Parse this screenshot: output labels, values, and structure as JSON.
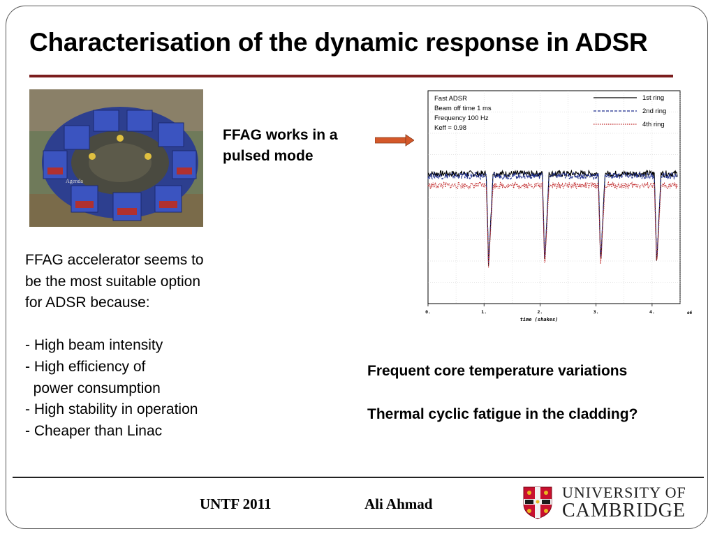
{
  "slide": {
    "title": "Characterisation of the dynamic response in ADSR",
    "photo_label": "Agenda",
    "ffag_note": [
      "FFAG works in a",
      "pulsed mode"
    ],
    "intro": [
      "FFAG accelerator seems to",
      "be the most suitable option",
      "for ADSR because:"
    ],
    "bullets": [
      "- High beam intensity",
      "- High efficiency of",
      "  power consumption",
      "- High stability in operation",
      "- Cheaper than Linac"
    ],
    "remarks": [
      "Frequent core temperature variations",
      "Thermal cyclic fatigue in the cladding?"
    ]
  },
  "footer": {
    "event": "UNTF 2011",
    "author": "Ali Ahmad",
    "university_line1": "UNIVERSITY OF",
    "university_line2": "CAMBRIDGE"
  },
  "colors": {
    "title_rule": "#7b1d1d",
    "arrow": "#d4582a",
    "series_ring1": "#000000",
    "series_ring2": "#1f2f8f",
    "series_ring4": "#c0282a",
    "crest_red": "#c8102e"
  },
  "chart_data": {
    "type": "line",
    "xlabel": "time (shakes)",
    "x_ticks": [
      "0.",
      "1.",
      "2.",
      "3.",
      "4."
    ],
    "x_exponent": "e6",
    "xlim": [
      0,
      4.5
    ],
    "ylim": [
      0,
      1
    ],
    "annotation": [
      "Fast ADSR",
      "Beam off time 1 ms",
      "Frequency 100 Hz",
      "Keff =  0.98"
    ],
    "beam_off_times": [
      1.08,
      2.08,
      3.08,
      4.08
    ],
    "series": [
      {
        "name": "1st ring",
        "style": "solid",
        "color": "#000000",
        "baseline": 0.61,
        "dip": 0.17
      },
      {
        "name": "2nd ring",
        "style": "dashed",
        "color": "#1f2f8f",
        "baseline": 0.6,
        "dip": 0.18
      },
      {
        "name": "4th  ring",
        "style": "dotted",
        "color": "#c0282a",
        "baseline": 0.555,
        "dip": 0.16
      }
    ]
  }
}
